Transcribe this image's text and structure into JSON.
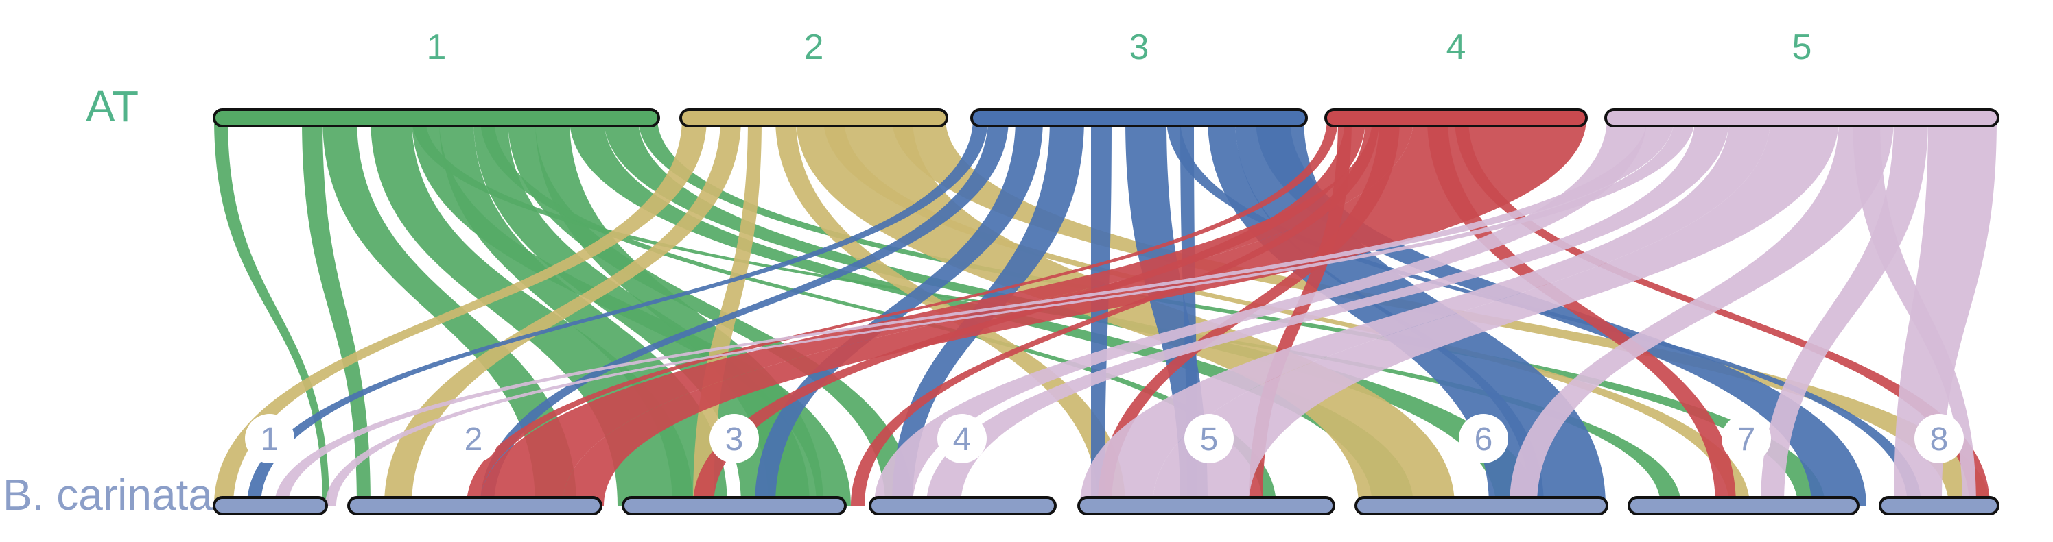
{
  "genomes": {
    "top": {
      "label": "AT",
      "color": "#52b38a"
    },
    "bottom": {
      "label": "B. carinata",
      "color": "#8b9ec8"
    }
  },
  "top_chromosomes": [
    {
      "label": "1",
      "color": "#55aa66"
    },
    {
      "label": "2",
      "color": "#ccb870"
    },
    {
      "label": "3",
      "color": "#4a72b0"
    },
    {
      "label": "4",
      "color": "#c94a4f"
    },
    {
      "label": "5",
      "color": "#d6bcd8"
    }
  ],
  "bottom_chromosomes": [
    {
      "label": "1"
    },
    {
      "label": "2"
    },
    {
      "label": "3"
    },
    {
      "label": "4"
    },
    {
      "label": "5"
    },
    {
      "label": "6"
    },
    {
      "label": "7"
    },
    {
      "label": "8"
    }
  ]
}
